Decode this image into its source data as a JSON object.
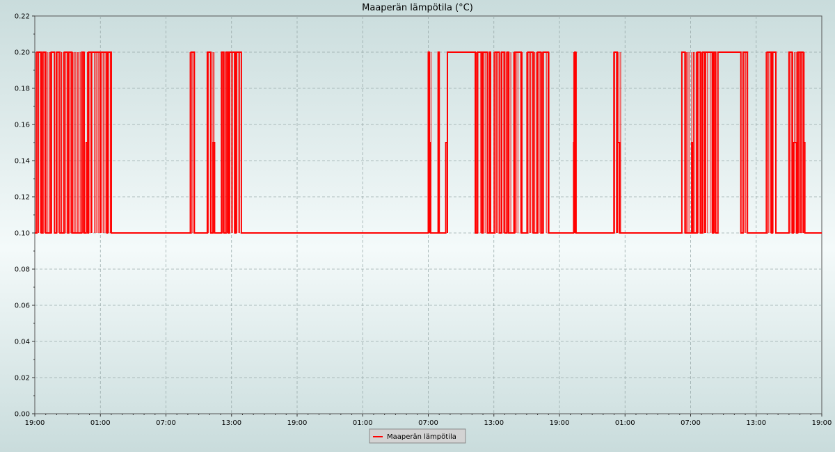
{
  "chart_data": {
    "type": "line",
    "title": "Maaperän lämpötila (°C)",
    "xlabel": "",
    "ylabel": "",
    "xlim": [
      0,
      72
    ],
    "ylim": [
      0,
      0.22
    ],
    "x_unit_note": "hours from first 19:00 tick",
    "x_ticks": [
      {
        "x": 0,
        "label": "19:00"
      },
      {
        "x": 6,
        "label": "01:00"
      },
      {
        "x": 12,
        "label": "07:00"
      },
      {
        "x": 18,
        "label": "13:00"
      },
      {
        "x": 24,
        "label": "19:00"
      },
      {
        "x": 30,
        "label": "01:00"
      },
      {
        "x": 36,
        "label": "07:00"
      },
      {
        "x": 42,
        "label": "13:00"
      },
      {
        "x": 48,
        "label": "19:00"
      },
      {
        "x": 54,
        "label": "01:00"
      },
      {
        "x": 60,
        "label": "07:00"
      },
      {
        "x": 66,
        "label": "13:00"
      },
      {
        "x": 72,
        "label": "19:00"
      }
    ],
    "y_ticks": [
      0.0,
      0.02,
      0.04,
      0.06,
      0.08,
      0.1,
      0.12,
      0.14,
      0.16,
      0.18,
      0.2,
      0.22
    ],
    "y_tick_labels": [
      "0.00",
      "0.02",
      "0.04",
      "0.06",
      "0.08",
      "0.10",
      "0.12",
      "0.14",
      "0.16",
      "0.18",
      "0.20",
      "0.22"
    ],
    "grid": true,
    "legend_position": "bottom-center",
    "series": [
      {
        "name": "Maaperän lämpötila",
        "color": "#ff0000",
        "baseline": 0.1,
        "x_end": 72.0,
        "pulses": [
          [
            0.2,
            0.6,
            0.2
          ],
          [
            0.75,
            1.0,
            0.2
          ],
          [
            1.5,
            1.8,
            0.2
          ],
          [
            2.0,
            2.3,
            0.2
          ],
          [
            2.7,
            3.0,
            0.2
          ],
          [
            3.1,
            3.4,
            0.2
          ],
          [
            4.3,
            4.5,
            0.2
          ],
          [
            4.7,
            4.85,
            0.15
          ],
          [
            4.9,
            5.2,
            0.2
          ],
          [
            5.2,
            6.0,
            0.2
          ],
          [
            6.0,
            6.6,
            0.2
          ],
          [
            6.65,
            7.0,
            0.2
          ],
          [
            14.3,
            14.6,
            0.2
          ],
          [
            15.8,
            16.1,
            0.2
          ],
          [
            16.3,
            16.45,
            0.15
          ],
          [
            17.1,
            17.3,
            0.2
          ],
          [
            17.5,
            17.7,
            0.2
          ],
          [
            17.8,
            18.3,
            0.2
          ],
          [
            18.4,
            18.9,
            0.2
          ],
          [
            36.0,
            36.1,
            0.2
          ],
          [
            36.1,
            36.2,
            0.15
          ],
          [
            36.9,
            37.0,
            0.2
          ],
          [
            37.6,
            37.75,
            0.15
          ],
          [
            37.75,
            40.3,
            0.2
          ],
          [
            40.5,
            40.9,
            0.2
          ],
          [
            41.0,
            41.4,
            0.2
          ],
          [
            41.6,
            41.7,
            0.2
          ],
          [
            42.1,
            42.5,
            0.2
          ],
          [
            42.7,
            43.0,
            0.2
          ],
          [
            43.2,
            43.35,
            0.2
          ],
          [
            43.9,
            44.5,
            0.2
          ],
          [
            45.1,
            45.6,
            0.2
          ],
          [
            46.0,
            46.3,
            0.2
          ],
          [
            46.5,
            47.0,
            0.2
          ],
          [
            49.3,
            49.4,
            0.15
          ],
          [
            49.4,
            49.5,
            0.2
          ],
          [
            53.0,
            53.3,
            0.2
          ],
          [
            53.3,
            53.5,
            0.15
          ],
          [
            59.2,
            59.5,
            0.2
          ],
          [
            60.1,
            60.2,
            0.15
          ],
          [
            60.6,
            60.9,
            0.2
          ],
          [
            61.1,
            61.3,
            0.2
          ],
          [
            61.3,
            62.0,
            0.2
          ],
          [
            62.1,
            62.3,
            0.2
          ],
          [
            62.5,
            64.6,
            0.2
          ],
          [
            64.8,
            65.2,
            0.2
          ],
          [
            67.0,
            67.4,
            0.2
          ],
          [
            67.5,
            67.8,
            0.2
          ],
          [
            69.0,
            69.3,
            0.2
          ],
          [
            69.4,
            69.7,
            0.15
          ],
          [
            69.8,
            70.1,
            0.2
          ],
          [
            70.1,
            70.3,
            0.2
          ],
          [
            70.3,
            70.45,
            0.15
          ]
        ],
        "dense_ranges": [
          [
            0.1,
            7.1
          ],
          [
            14.2,
            14.7
          ],
          [
            15.7,
            16.5
          ],
          [
            17.0,
            18.9
          ],
          [
            35.9,
            36.3
          ],
          [
            40.4,
            41.8
          ],
          [
            42.0,
            44.6
          ],
          [
            45.0,
            47.1
          ],
          [
            49.2,
            49.6
          ],
          [
            52.9,
            53.6
          ],
          [
            59.1,
            62.4
          ],
          [
            64.7,
            65.3
          ],
          [
            66.9,
            67.9
          ],
          [
            68.9,
            70.5
          ]
        ]
      }
    ]
  }
}
